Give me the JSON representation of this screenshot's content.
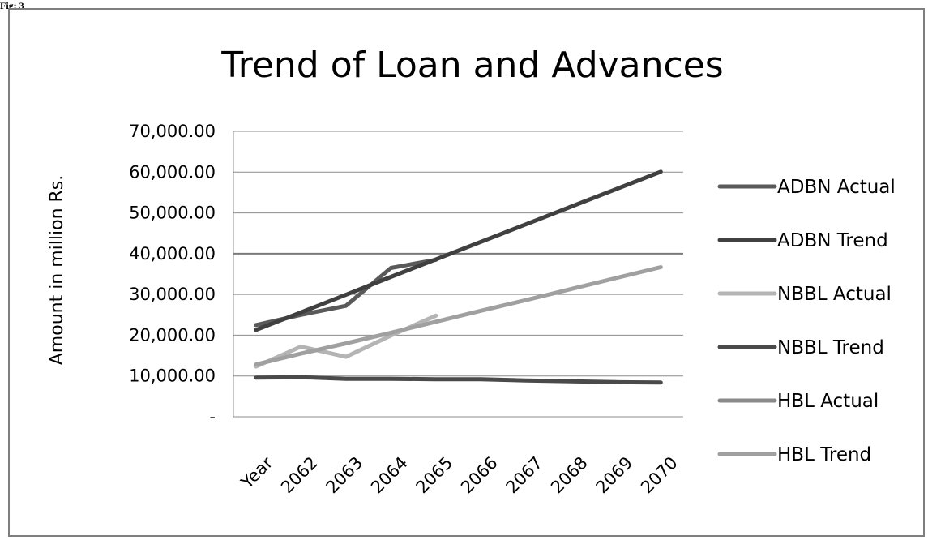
{
  "figure_label": "Fig: 3",
  "chart_data": {
    "type": "line",
    "title": "Trend of Loan and Advances",
    "xlabel": "",
    "ylabel": "Amount in million Rs.",
    "categories": [
      "Year",
      "2062",
      "2063",
      "2064",
      "2065",
      "2066",
      "2067",
      "2068",
      "2069",
      "2070"
    ],
    "ylim": [
      0,
      70000
    ],
    "y_ticks": [
      0,
      10000,
      20000,
      30000,
      40000,
      50000,
      60000,
      70000
    ],
    "y_tick_labels": [
      "-",
      "10,000.00",
      "20,000.00",
      "30,000.00",
      "40,000.00",
      "50,000.00",
      "60,000.00",
      "70,000.00"
    ],
    "grid": true,
    "legend_position": "right",
    "series": [
      {
        "name": "ADBN Actual",
        "color": "#5a5a5a",
        "values": [
          22500,
          25000,
          27200,
          36500,
          38500,
          null,
          null,
          null,
          null,
          null
        ]
      },
      {
        "name": "ADBN Trend",
        "color": "#404040",
        "values": [
          21300,
          25600,
          29900,
          34300,
          38600,
          42900,
          47200,
          51500,
          55800,
          60100
        ]
      },
      {
        "name": "NBBL Actual",
        "color": "#b4b4b4",
        "values": [
          12300,
          17200,
          14700,
          19900,
          24800,
          null,
          null,
          null,
          null,
          null
        ]
      },
      {
        "name": "NBBL Trend",
        "color": "#4a4a4a",
        "values": [
          9600,
          9700,
          9300,
          9300,
          9200,
          9200,
          8900,
          8700,
          8500,
          8400
        ]
      },
      {
        "name": "HBL Actual",
        "color": "#8a8a8a",
        "values": [
          null,
          null,
          null,
          null,
          null,
          null,
          null,
          null,
          null,
          null
        ]
      },
      {
        "name": "HBL Trend",
        "color": "#a0a0a0",
        "values": [
          12800,
          15500,
          18000,
          20600,
          23300,
          26000,
          28600,
          31300,
          34000,
          36700
        ]
      }
    ]
  }
}
